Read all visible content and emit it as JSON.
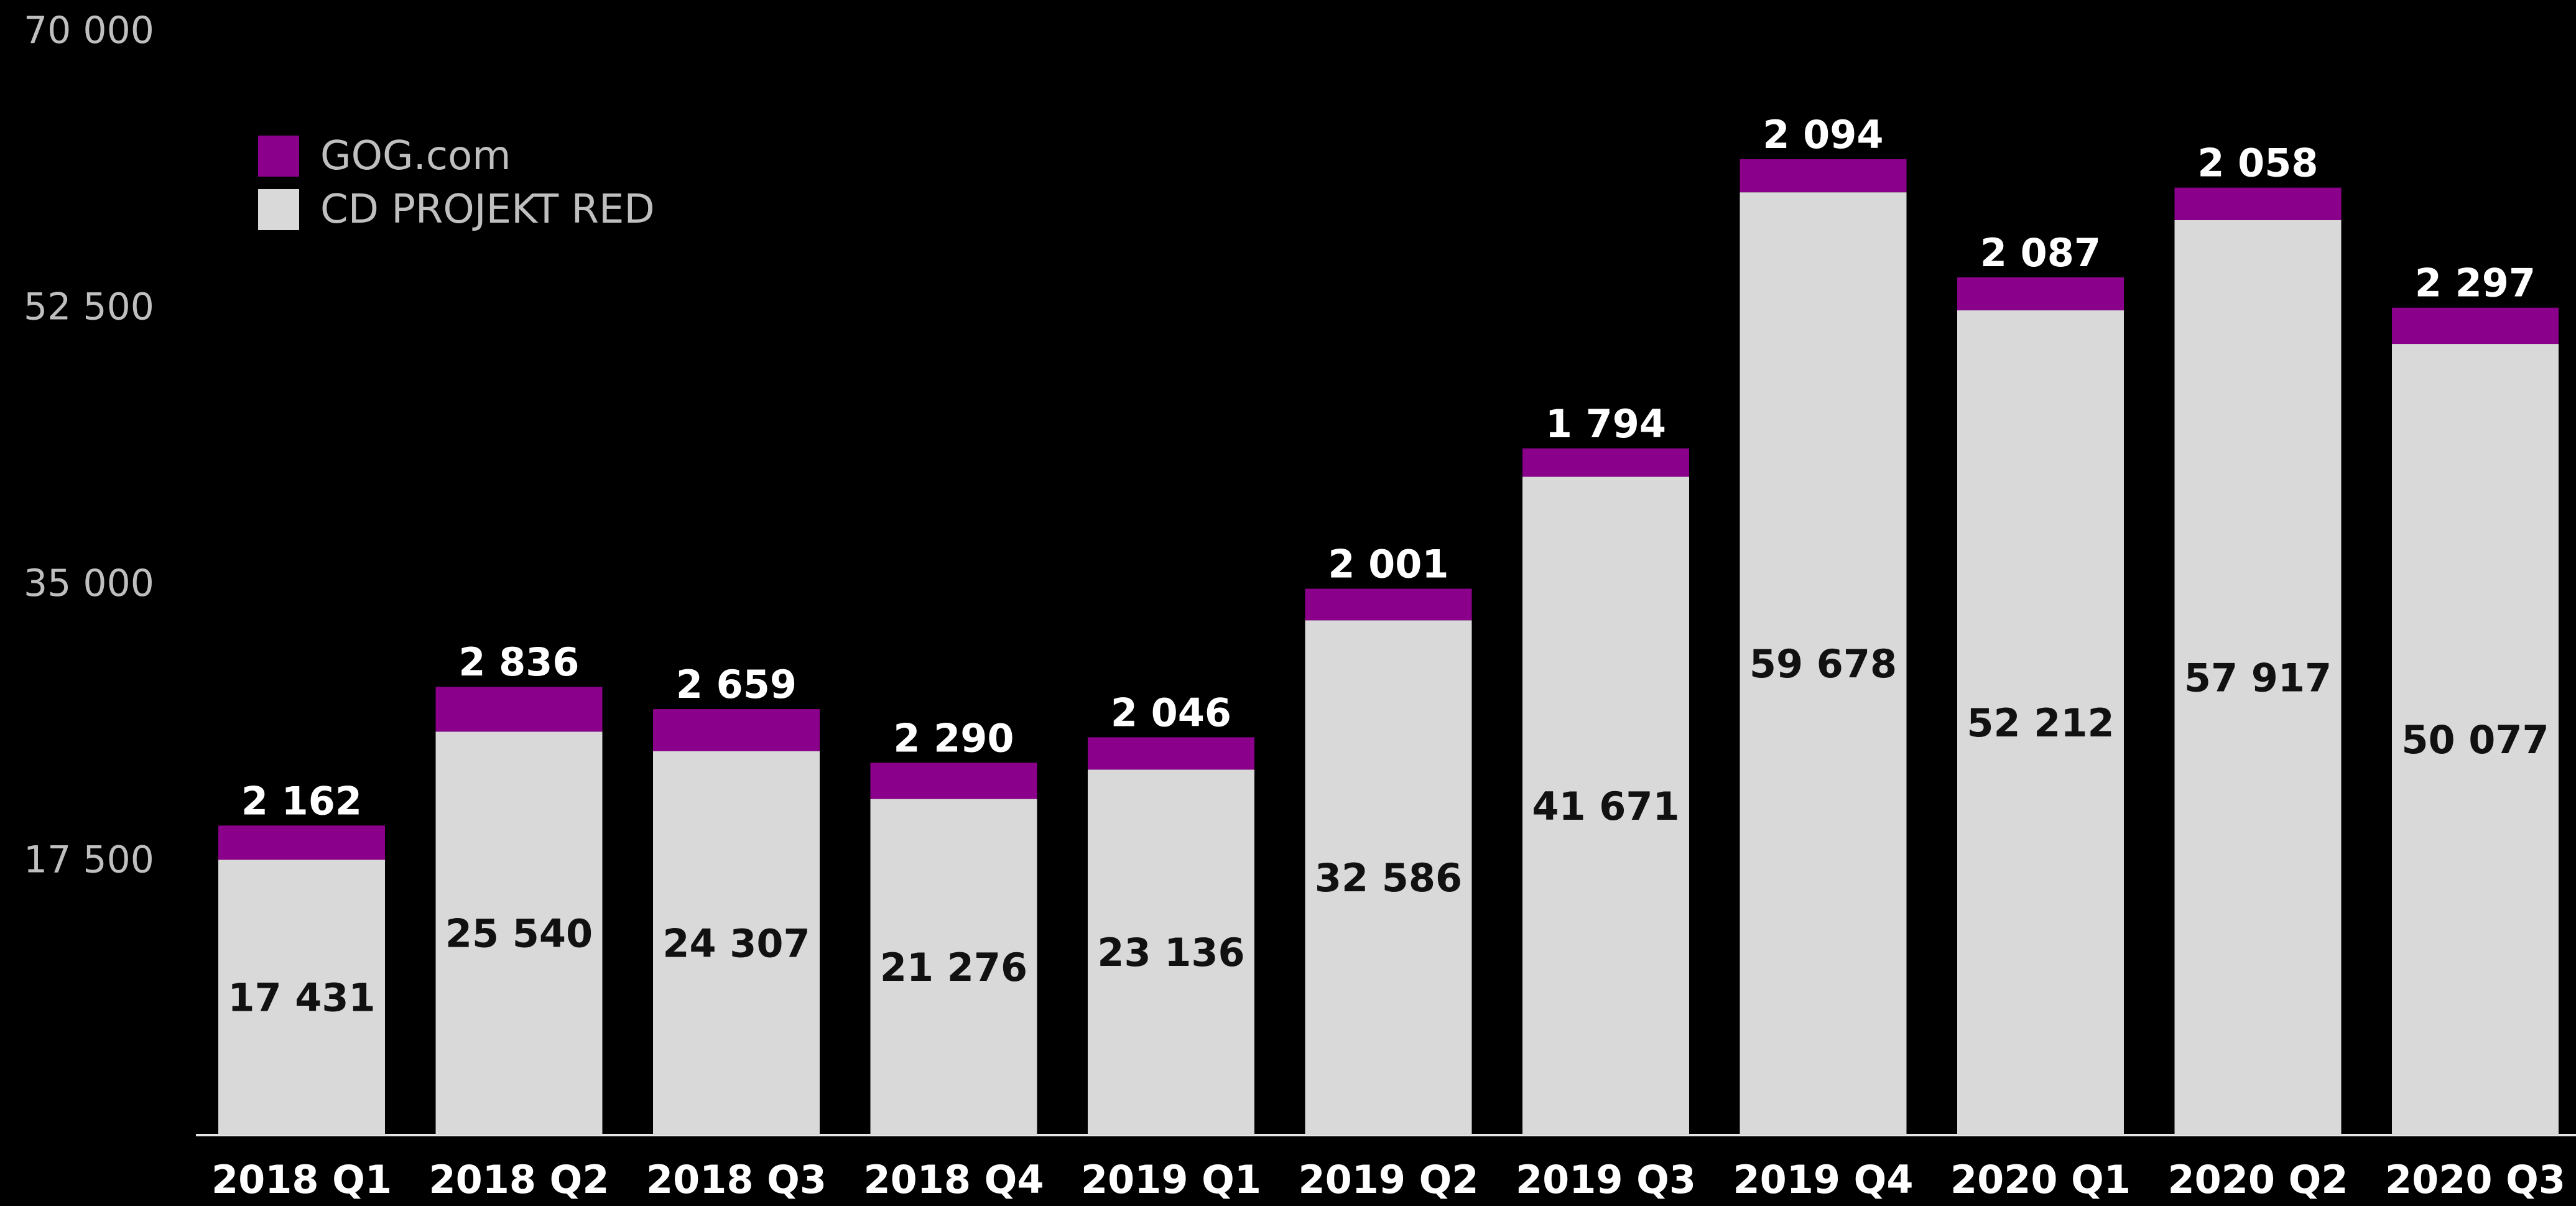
{
  "chart_data": {
    "type": "bar",
    "stacked": true,
    "title": "",
    "xlabel": "",
    "ylabel": "",
    "ylim": [
      0,
      70000
    ],
    "y_ticks": [
      {
        "value": 17500,
        "label": "17 500"
      },
      {
        "value": 35000,
        "label": "35 000"
      },
      {
        "value": 52500,
        "label": "52 500"
      },
      {
        "value": 70000,
        "label": "70 000"
      }
    ],
    "grid": false,
    "legend_position": "top-left",
    "categories": [
      "2018 Q1",
      "2018 Q2",
      "2018 Q3",
      "2018 Q4",
      "2019 Q1",
      "2019 Q2",
      "2019 Q3",
      "2019 Q4",
      "2020 Q1",
      "2020 Q2",
      "2020 Q3"
    ],
    "series": [
      {
        "name": "CD PROJEKT RED",
        "color": "#d9d9d9",
        "values": [
          17431,
          25540,
          24307,
          21276,
          23136,
          32586,
          41671,
          59678,
          52212,
          57917,
          50077
        ],
        "labels": [
          "17 431",
          "25 540",
          "24 307",
          "21 276",
          "23 136",
          "32 586",
          "41 671",
          "59 678",
          "52 212",
          "57 917",
          "50 077"
        ]
      },
      {
        "name": "GOG.com",
        "color": "#8b008b",
        "values": [
          2162,
          2836,
          2659,
          2290,
          2046,
          2001,
          1794,
          2094,
          2087,
          2058,
          2297
        ],
        "labels": [
          "2 162",
          "2 836",
          "2 659",
          "2 290",
          "2 046",
          "2 001",
          "1 794",
          "2 094",
          "2 087",
          "2 058",
          "2 297"
        ]
      }
    ],
    "legend": [
      {
        "name": "GOG.com",
        "color": "#8b008b"
      },
      {
        "name": "CD PROJEKT RED",
        "color": "#d9d9d9"
      }
    ]
  }
}
